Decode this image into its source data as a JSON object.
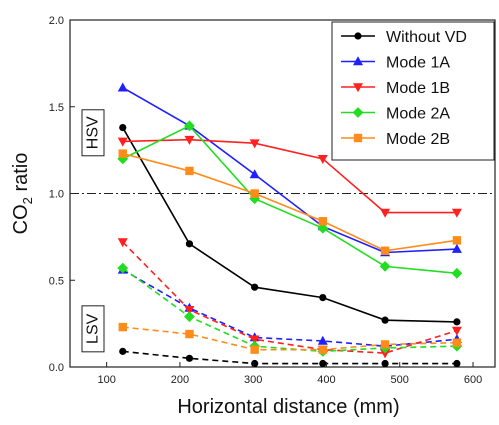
{
  "chart_data": {
    "type": "line",
    "xlabel": "Horizontal distance (mm)",
    "ylabel": {
      "main": "CO",
      "sub": "2",
      "tail": " ratio"
    },
    "xlim": [
      50,
      630
    ],
    "ylim": [
      0,
      2.0
    ],
    "xticks": [
      100,
      200,
      300,
      400,
      500,
      600
    ],
    "yticks": [
      0.0,
      0.5,
      1.0,
      1.5,
      2.0
    ],
    "ytick_labels": [
      "0.0",
      "0.5",
      "1.0",
      "1.5",
      "2.0"
    ],
    "x": [
      122,
      213,
      302,
      395,
      480,
      578
    ],
    "reference_line": {
      "y": 1.0,
      "style": "dash-dot"
    },
    "region_labels": [
      {
        "id": "hsv",
        "text": "HSV",
        "y": 1.35
      },
      {
        "id": "lsv",
        "text": "LSV",
        "y": 0.22
      }
    ],
    "series": [
      {
        "id": "without-vd",
        "name": "Without VD",
        "color": "#000000",
        "marker": "circle",
        "hsv": [
          1.38,
          0.71,
          0.46,
          0.4,
          0.27,
          0.26
        ],
        "lsv": [
          0.09,
          0.05,
          0.02,
          0.02,
          0.02,
          0.02
        ]
      },
      {
        "id": "mode-1a",
        "name": "Mode 1A",
        "color": "#1f1fff",
        "marker": "triangle-up",
        "hsv": [
          1.61,
          1.39,
          1.11,
          0.81,
          0.66,
          0.68
        ],
        "lsv": [
          0.56,
          0.34,
          0.17,
          0.15,
          0.12,
          0.16
        ]
      },
      {
        "id": "mode-1b",
        "name": "Mode 1B",
        "color": "#ff2020",
        "marker": "triangle-down",
        "hsv": [
          1.3,
          1.31,
          1.29,
          1.2,
          0.89,
          0.89
        ],
        "lsv": [
          0.72,
          0.33,
          0.16,
          0.1,
          0.08,
          0.21
        ]
      },
      {
        "id": "mode-2a",
        "name": "Mode 2A",
        "color": "#22dd22",
        "marker": "diamond",
        "hsv": [
          1.2,
          1.39,
          0.97,
          0.8,
          0.58,
          0.54
        ],
        "lsv": [
          0.57,
          0.29,
          0.12,
          0.09,
          0.11,
          0.12
        ]
      },
      {
        "id": "mode-2b",
        "name": "Mode 2B",
        "color": "#ff8c1a",
        "marker": "square",
        "hsv": [
          1.23,
          1.13,
          1.0,
          0.84,
          0.67,
          0.73
        ],
        "lsv": [
          0.23,
          0.19,
          0.1,
          0.1,
          0.13,
          0.14
        ]
      }
    ],
    "grid": false,
    "legend_position": "top-right"
  }
}
